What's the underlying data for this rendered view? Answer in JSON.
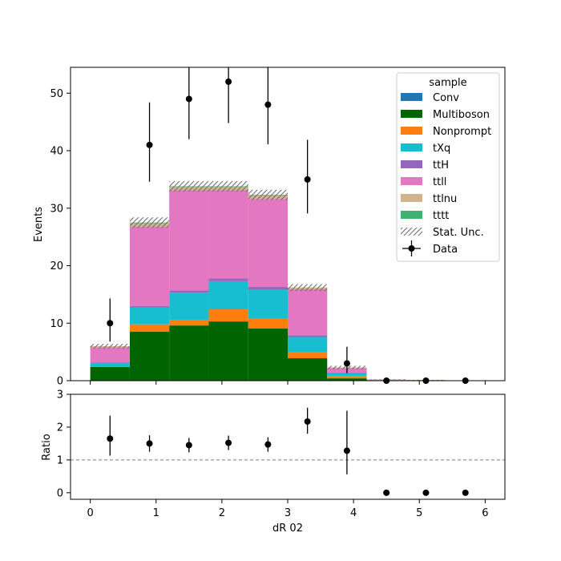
{
  "chart_data": {
    "type": "bar",
    "subtype": "stacked-histogram-with-ratio",
    "xlabel": "dR 02",
    "ylabel": "Events",
    "ratio_ylabel": "Ratio",
    "xlim": [
      -0.3,
      6.3
    ],
    "ylim": [
      0,
      54.5
    ],
    "ratio_ylim": [
      -0.2,
      3.0
    ],
    "x_ticks": [
      0,
      1,
      2,
      3,
      4,
      5,
      6
    ],
    "y_ticks": [
      0,
      10,
      20,
      30,
      40,
      50
    ],
    "ratio_y_ticks": [
      0,
      1,
      2,
      3
    ],
    "bin_edges": [
      0.0,
      0.6,
      1.2,
      1.8,
      2.4,
      3.0,
      3.6,
      4.2,
      4.8,
      5.4,
      6.0
    ],
    "legend": {
      "title": "sample",
      "placement": "top-right"
    },
    "series": [
      {
        "name": "Conv",
        "color": "#1f77b4",
        "values": [
          0,
          0,
          0,
          0,
          0,
          0,
          0,
          0,
          0,
          0
        ]
      },
      {
        "name": "Multiboson",
        "color": "#006400",
        "values": [
          2.4,
          8.5,
          9.6,
          10.3,
          9.1,
          3.9,
          0.4,
          0,
          0,
          0
        ]
      },
      {
        "name": "Nonprompt",
        "color": "#ff7f0e",
        "values": [
          0,
          1.3,
          1.0,
          2.1,
          1.7,
          1.0,
          0.4,
          0,
          0.1,
          0
        ]
      },
      {
        "name": "tXq",
        "color": "#17becf",
        "values": [
          0.7,
          2.9,
          4.7,
          4.9,
          5.0,
          2.7,
          0.5,
          0.1,
          0,
          0
        ]
      },
      {
        "name": "ttH",
        "color": "#9467bd",
        "values": [
          0.1,
          0.3,
          0.4,
          0.5,
          0.5,
          0.3,
          0.1,
          0,
          0,
          0
        ]
      },
      {
        "name": "ttll",
        "color": "#e377c2",
        "values": [
          2.6,
          13.8,
          17.4,
          15.3,
          15.3,
          8.0,
          0.8,
          0.1,
          0,
          0
        ]
      },
      {
        "name": "ttlnu",
        "color": "#d2b48c",
        "values": [
          0.2,
          0.6,
          0.6,
          0.6,
          0.6,
          0.3,
          0.1,
          0,
          0,
          0
        ]
      },
      {
        "name": "tttt",
        "color": "#3cb371",
        "values": [
          0,
          0.1,
          0.1,
          0.1,
          0.1,
          0,
          0,
          0,
          0,
          0
        ]
      }
    ],
    "stat_unc": {
      "name": "Stat. Unc.",
      "half_width": [
        0.4,
        0.9,
        0.9,
        0.9,
        0.9,
        0.6,
        0.3,
        0.05,
        0.05,
        0
      ]
    },
    "data": {
      "name": "Data",
      "x": [
        0.3,
        0.9,
        1.5,
        2.1,
        2.7,
        3.3,
        3.9,
        4.5,
        5.1,
        5.7
      ],
      "y": [
        10,
        41,
        49,
        52,
        48,
        35,
        3,
        0,
        0,
        0
      ],
      "yerr_low": [
        3.2,
        6.4,
        7.0,
        7.2,
        6.9,
        5.9,
        1.7,
        0,
        0,
        0
      ],
      "yerr_high": [
        4.3,
        7.4,
        8.0,
        8.2,
        7.9,
        6.9,
        2.9,
        0,
        0,
        0
      ]
    },
    "ratio": {
      "x": [
        0.3,
        0.9,
        1.5,
        2.1,
        2.7,
        3.3,
        3.9,
        4.5,
        5.1,
        5.7
      ],
      "y": [
        1.65,
        1.5,
        1.45,
        1.52,
        1.47,
        2.17,
        1.28,
        0,
        0,
        0
      ],
      "yerr_low": [
        0.52,
        0.25,
        0.22,
        0.22,
        0.22,
        0.37,
        0.72,
        0,
        0,
        0
      ],
      "yerr_high": [
        0.7,
        0.25,
        0.22,
        0.22,
        0.22,
        0.42,
        1.22,
        0,
        0,
        0
      ],
      "reference_line": 1
    }
  }
}
